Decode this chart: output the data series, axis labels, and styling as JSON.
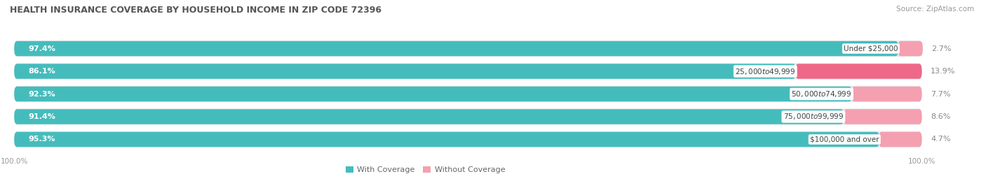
{
  "title": "HEALTH INSURANCE COVERAGE BY HOUSEHOLD INCOME IN ZIP CODE 72396",
  "source": "Source: ZipAtlas.com",
  "categories": [
    "Under $25,000",
    "$25,000 to $49,999",
    "$50,000 to $74,999",
    "$75,000 to $99,999",
    "$100,000 and over"
  ],
  "with_coverage": [
    97.4,
    86.1,
    92.3,
    91.4,
    95.3
  ],
  "without_coverage": [
    2.7,
    13.9,
    7.7,
    8.6,
    4.7
  ],
  "color_with": "#45BCBC",
  "color_without_0": "#F4A0B0",
  "color_without_1": "#EE6888",
  "color_without_2": "#F4A0B0",
  "color_without_3": "#F4A0B0",
  "color_without_4": "#F4A0B0",
  "background_color": "#FFFFFF",
  "bar_bg_color": "#E8E8EC",
  "title_fontsize": 9.0,
  "source_fontsize": 7.5,
  "label_fontsize": 8.0,
  "cat_fontsize": 7.5,
  "tick_fontsize": 7.5,
  "legend_fontsize": 8.0
}
